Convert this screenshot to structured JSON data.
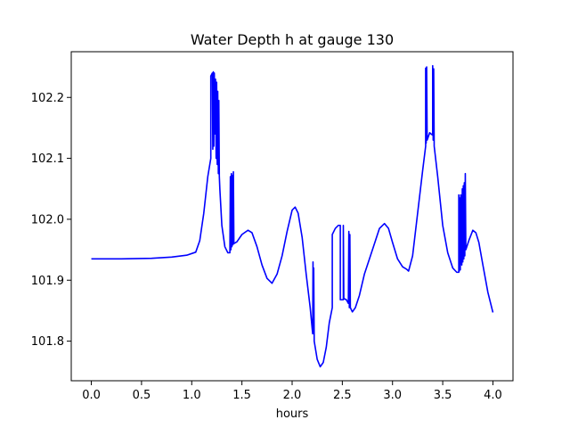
{
  "chart_data": {
    "type": "line",
    "title": "Water Depth h at gauge 130",
    "xlabel": "hours",
    "ylabel": "",
    "xlim": [
      -0.2,
      4.2
    ],
    "ylim": [
      101.735,
      102.275
    ],
    "xticks": [
      0.0,
      0.5,
      1.0,
      1.5,
      2.0,
      2.5,
      3.0,
      3.5,
      4.0
    ],
    "xtick_labels": [
      "0.0",
      "0.5",
      "1.0",
      "1.5",
      "2.0",
      "2.5",
      "3.0",
      "3.5",
      "4.0"
    ],
    "yticks": [
      101.8,
      101.9,
      102.0,
      102.1,
      102.2
    ],
    "ytick_labels": [
      "101.8",
      "101.9",
      "102.0",
      "102.1",
      "102.2"
    ],
    "grid": false,
    "legend": "none",
    "series": [
      {
        "color": "#0000ff",
        "points": [
          [
            0.0,
            101.935
          ],
          [
            0.3,
            101.935
          ],
          [
            0.6,
            101.936
          ],
          [
            0.8,
            101.938
          ],
          [
            0.95,
            101.941
          ],
          [
            1.04,
            101.946
          ],
          [
            1.08,
            101.965
          ],
          [
            1.12,
            102.01
          ],
          [
            1.16,
            102.07
          ],
          [
            1.19,
            102.1
          ],
          [
            1.19,
            102.235
          ],
          [
            1.205,
            102.24
          ],
          [
            1.21,
            102.115
          ],
          [
            1.215,
            102.242
          ],
          [
            1.22,
            102.12
          ],
          [
            1.225,
            102.24
          ],
          [
            1.232,
            102.14
          ],
          [
            1.237,
            102.23
          ],
          [
            1.243,
            102.1
          ],
          [
            1.248,
            102.225
          ],
          [
            1.254,
            102.09
          ],
          [
            1.259,
            102.21
          ],
          [
            1.265,
            102.075
          ],
          [
            1.27,
            102.195
          ],
          [
            1.275,
            102.07
          ],
          [
            1.28,
            102.05
          ],
          [
            1.3,
            101.99
          ],
          [
            1.33,
            101.955
          ],
          [
            1.36,
            101.945
          ],
          [
            1.38,
            101.945
          ],
          [
            1.385,
            102.07
          ],
          [
            1.39,
            101.95
          ],
          [
            1.395,
            102.075
          ],
          [
            1.4,
            101.955
          ],
          [
            1.405,
            102.072
          ],
          [
            1.41,
            101.958
          ],
          [
            1.415,
            102.078
          ],
          [
            1.42,
            101.96
          ],
          [
            1.45,
            101.963
          ],
          [
            1.5,
            101.975
          ],
          [
            1.56,
            101.982
          ],
          [
            1.6,
            101.978
          ],
          [
            1.65,
            101.955
          ],
          [
            1.7,
            101.925
          ],
          [
            1.75,
            101.903
          ],
          [
            1.8,
            101.895
          ],
          [
            1.85,
            101.91
          ],
          [
            1.9,
            101.94
          ],
          [
            1.95,
            101.98
          ],
          [
            2.0,
            102.015
          ],
          [
            2.03,
            102.02
          ],
          [
            2.06,
            102.01
          ],
          [
            2.1,
            101.97
          ],
          [
            2.14,
            101.91
          ],
          [
            2.18,
            101.855
          ],
          [
            2.2,
            101.82
          ],
          [
            2.205,
            101.812
          ],
          [
            2.208,
            101.93
          ],
          [
            2.212,
            101.815
          ],
          [
            2.215,
            101.92
          ],
          [
            2.22,
            101.8
          ],
          [
            2.25,
            101.77
          ],
          [
            2.28,
            101.758
          ],
          [
            2.31,
            101.765
          ],
          [
            2.34,
            101.79
          ],
          [
            2.37,
            101.83
          ],
          [
            2.4,
            101.855
          ],
          [
            2.4,
            101.975
          ],
          [
            2.43,
            101.985
          ],
          [
            2.46,
            101.99
          ],
          [
            2.48,
            101.99
          ],
          [
            2.48,
            101.868
          ],
          [
            2.51,
            101.868
          ],
          [
            2.51,
            101.99
          ],
          [
            2.515,
            101.87
          ],
          [
            2.54,
            101.868
          ],
          [
            2.56,
            101.862
          ],
          [
            2.565,
            101.98
          ],
          [
            2.57,
            101.855
          ],
          [
            2.575,
            101.975
          ],
          [
            2.58,
            101.855
          ],
          [
            2.6,
            101.848
          ],
          [
            2.63,
            101.855
          ],
          [
            2.67,
            101.875
          ],
          [
            2.72,
            101.91
          ],
          [
            2.77,
            101.935
          ],
          [
            2.83,
            101.965
          ],
          [
            2.87,
            101.985
          ],
          [
            2.92,
            101.993
          ],
          [
            2.96,
            101.985
          ],
          [
            3.0,
            101.962
          ],
          [
            3.05,
            101.935
          ],
          [
            3.1,
            101.922
          ],
          [
            3.14,
            101.918
          ],
          [
            3.16,
            101.915
          ],
          [
            3.2,
            101.94
          ],
          [
            3.25,
            102.01
          ],
          [
            3.3,
            102.08
          ],
          [
            3.33,
            102.12
          ],
          [
            3.33,
            102.248
          ],
          [
            3.335,
            102.125
          ],
          [
            3.34,
            102.25
          ],
          [
            3.345,
            102.13
          ],
          [
            3.37,
            102.142
          ],
          [
            3.4,
            102.138
          ],
          [
            3.4,
            102.252
          ],
          [
            3.405,
            102.13
          ],
          [
            3.41,
            102.247
          ],
          [
            3.415,
            102.12
          ],
          [
            3.45,
            102.07
          ],
          [
            3.5,
            101.99
          ],
          [
            3.55,
            101.945
          ],
          [
            3.6,
            101.92
          ],
          [
            3.64,
            101.913
          ],
          [
            3.66,
            101.913
          ],
          [
            3.66,
            102.04
          ],
          [
            3.665,
            101.915
          ],
          [
            3.67,
            102.035
          ],
          [
            3.675,
            101.917
          ],
          [
            3.68,
            102.04
          ],
          [
            3.69,
            101.925
          ],
          [
            3.695,
            102.05
          ],
          [
            3.7,
            101.93
          ],
          [
            3.705,
            102.055
          ],
          [
            3.71,
            101.935
          ],
          [
            3.715,
            102.06
          ],
          [
            3.72,
            101.94
          ],
          [
            3.725,
            102.075
          ],
          [
            3.73,
            101.95
          ],
          [
            3.76,
            101.965
          ],
          [
            3.8,
            101.982
          ],
          [
            3.83,
            101.978
          ],
          [
            3.86,
            101.962
          ],
          [
            3.9,
            101.925
          ],
          [
            3.95,
            101.88
          ],
          [
            4.0,
            101.847
          ]
        ]
      }
    ]
  }
}
